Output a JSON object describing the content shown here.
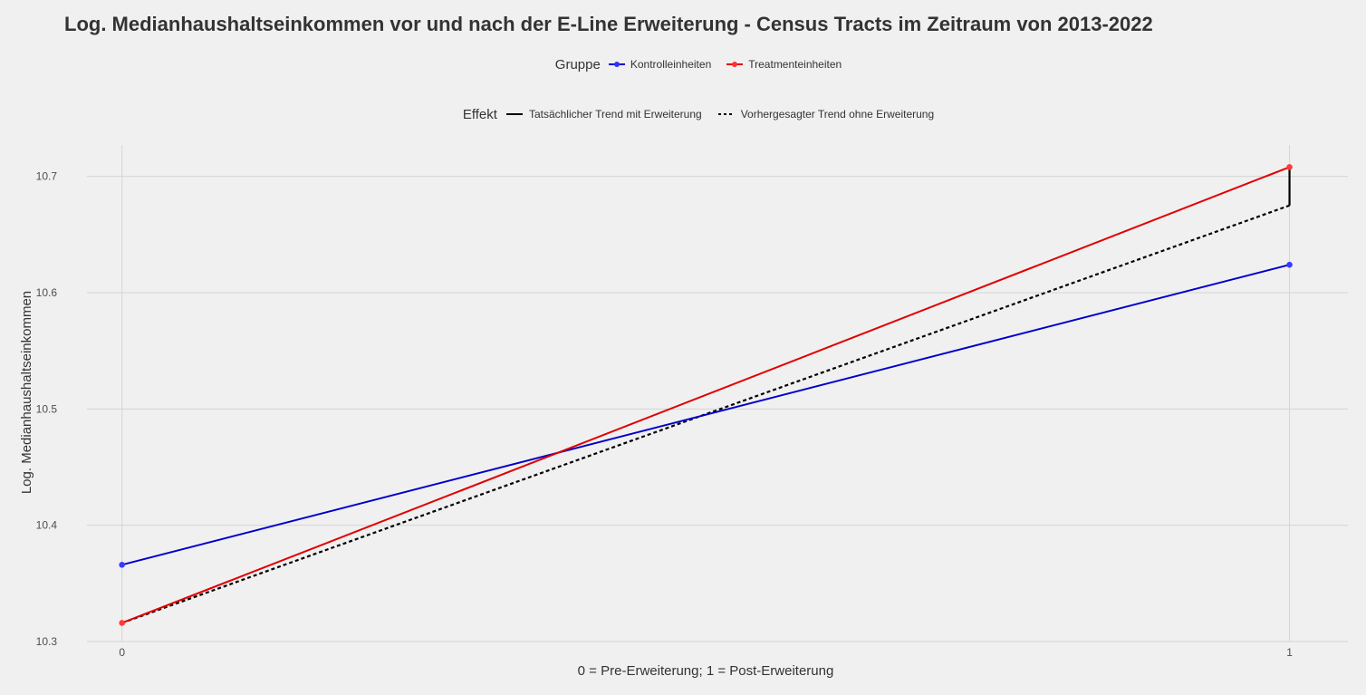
{
  "chart_data": {
    "type": "line",
    "title": "Log. Medianhaushaltseinkommen vor und nach der E-Line Erweiterung - Census Tracts im Zeitraum von 2013-2022",
    "xlabel": "0 = Pre-Erweiterung; 1 = Post-Erweiterung",
    "ylabel": "Log. Medianhaushaltseinkommen",
    "x": [
      0,
      1
    ],
    "x_ticks": [
      "0",
      "1"
    ],
    "y_ticks": [
      "10.3",
      "10.4",
      "10.5",
      "10.6",
      "10.7"
    ],
    "xlim": [
      -0.03,
      1.05
    ],
    "ylim": [
      10.3,
      10.727
    ],
    "grid": true,
    "legend_position": "top",
    "legend_gruppe": {
      "title": "Gruppe",
      "items": [
        {
          "label": "Kontrolleinheiten",
          "color": "#0000cc"
        },
        {
          "label": "Treatmenteinheiten",
          "color": "#e00000"
        }
      ]
    },
    "legend_effekt": {
      "title": "Effekt",
      "items": [
        {
          "label": "Tatsächlicher Trend mit Erweiterung",
          "style": "solid"
        },
        {
          "label": "Vorhergesagter Trend ohne Erweiterung",
          "style": "dashed"
        }
      ]
    },
    "series": [
      {
        "name": "Kontrolleinheiten",
        "color": "#0000cc",
        "values": [
          10.366,
          10.624
        ]
      },
      {
        "name": "Treatmenteinheiten",
        "color": "#e00000",
        "values": [
          10.316,
          10.708
        ]
      }
    ],
    "counterfactual": {
      "name": "Vorhergesagter Trend ohne Erweiterung",
      "color": "#000000",
      "values": [
        10.316,
        10.675
      ]
    },
    "effect_segment": {
      "x": 1,
      "from": 10.675,
      "to": 10.708,
      "color": "#000000"
    }
  }
}
